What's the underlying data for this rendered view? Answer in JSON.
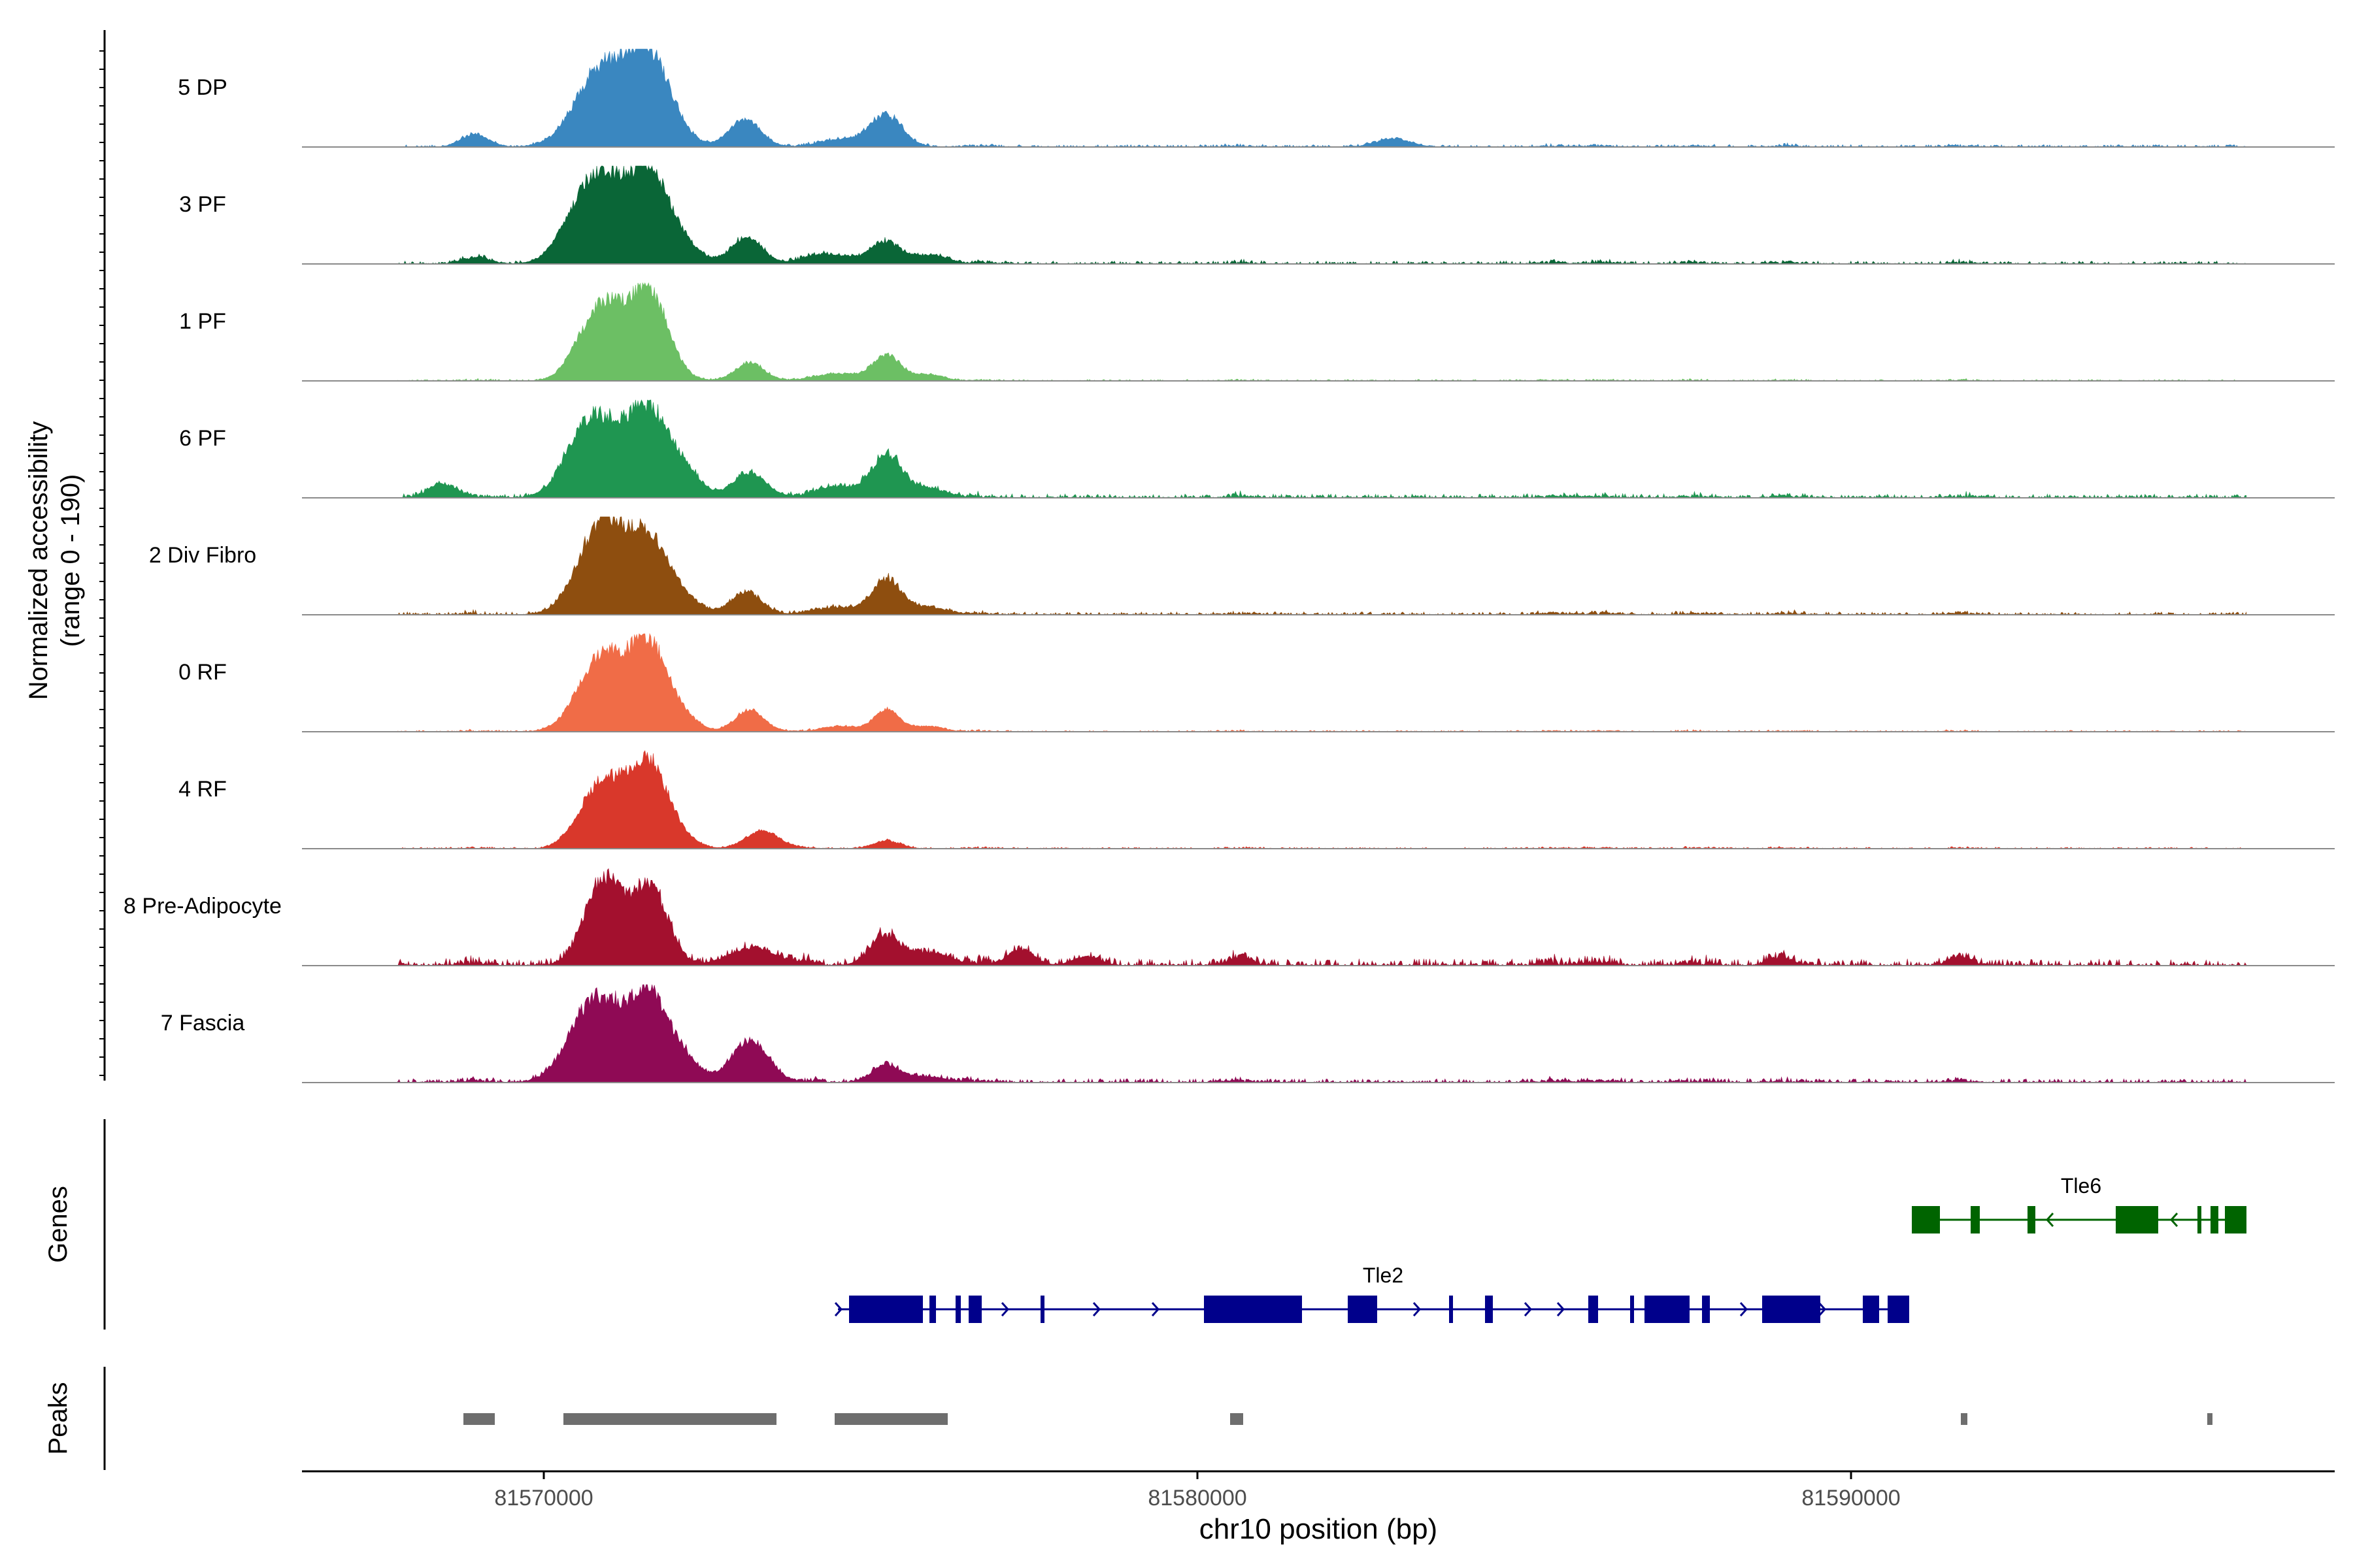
{
  "chart_data": {
    "type": "area",
    "title": "",
    "chromosome": "chr10",
    "xlabel": "chr10 position (bp)",
    "ylabel_line1": "Normalized accessibility",
    "ylabel_line2": "(range 0 - 190)",
    "y_range": [
      0,
      190
    ],
    "xlim": [
      81566300,
      81597400
    ],
    "x_ticks": [
      81570000,
      81580000,
      81590000
    ],
    "x_tick_labels": [
      "81570000",
      "81580000",
      "81590000"
    ],
    "genes_label": "Genes",
    "peaks_label": "Peaks",
    "track_start": 81567750,
    "track_end": 81596050,
    "peak_centers": [
      81568950,
      81571750,
      81574080,
      81575250,
      81576650,
      81580650,
      81585450,
      81586150,
      81587600,
      81589000,
      81591700
    ],
    "series": [
      {
        "name": "5 DP",
        "color": "#3A87C0",
        "peaks": [
          [
            81568950,
            200,
            0.13
          ],
          [
            81570850,
            380,
            0.82
          ],
          [
            81571600,
            350,
            1.0
          ],
          [
            81573070,
            240,
            0.3
          ],
          [
            81575230,
            250,
            0.34
          ],
          [
            81574550,
            300,
            0.08
          ],
          [
            81583000,
            250,
            0.09
          ]
        ],
        "noise": 0.025,
        "seed": 11
      },
      {
        "name": "3 PF",
        "color": "#0A6637",
        "peaks": [
          [
            81568950,
            200,
            0.06
          ],
          [
            81570450,
            300,
            0.22
          ],
          [
            81570850,
            350,
            0.86
          ],
          [
            81571600,
            330,
            1.0
          ],
          [
            81572200,
            250,
            0.12
          ],
          [
            81573100,
            230,
            0.3
          ],
          [
            81574400,
            350,
            0.1
          ],
          [
            81575230,
            220,
            0.24
          ],
          [
            81575900,
            250,
            0.1
          ]
        ],
        "noise": 0.03,
        "seed": 23
      },
      {
        "name": "1 PF",
        "color": "#6CBF64",
        "peaks": [
          [
            81570450,
            200,
            0.12
          ],
          [
            81570900,
            300,
            0.82
          ],
          [
            81571600,
            300,
            1.0
          ],
          [
            81573150,
            220,
            0.2
          ],
          [
            81574500,
            300,
            0.08
          ],
          [
            81575250,
            220,
            0.28
          ],
          [
            81575900,
            200,
            0.07
          ]
        ],
        "noise": 0.015,
        "seed": 37
      },
      {
        "name": "6 PF",
        "color": "#1F9651",
        "peaks": [
          [
            81568450,
            200,
            0.16
          ],
          [
            81570500,
            300,
            0.3
          ],
          [
            81570850,
            340,
            0.72
          ],
          [
            81571600,
            330,
            0.95
          ],
          [
            81572200,
            250,
            0.2
          ],
          [
            81573150,
            250,
            0.28
          ],
          [
            81574500,
            300,
            0.12
          ],
          [
            81575250,
            240,
            0.45
          ],
          [
            81575900,
            250,
            0.1
          ]
        ],
        "noise": 0.04,
        "seed": 53
      },
      {
        "name": "2 Div Fibro",
        "color": "#8E4E0F",
        "peaks": [
          [
            81570450,
            250,
            0.12
          ],
          [
            81570900,
            320,
            0.98
          ],
          [
            81571600,
            330,
            0.82
          ],
          [
            81572200,
            250,
            0.1
          ],
          [
            81573100,
            230,
            0.26
          ],
          [
            81574500,
            300,
            0.08
          ],
          [
            81575250,
            230,
            0.38
          ],
          [
            81575900,
            250,
            0.08
          ]
        ],
        "noise": 0.03,
        "seed": 67
      },
      {
        "name": "0 RF",
        "color": "#F06C47",
        "peaks": [
          [
            81570450,
            250,
            0.12
          ],
          [
            81570900,
            300,
            0.82
          ],
          [
            81571600,
            300,
            1.0
          ],
          [
            81572200,
            200,
            0.1
          ],
          [
            81573150,
            220,
            0.24
          ],
          [
            81574550,
            250,
            0.06
          ],
          [
            81575250,
            200,
            0.24
          ],
          [
            81575900,
            200,
            0.06
          ]
        ],
        "noise": 0.015,
        "seed": 79
      },
      {
        "name": "4 RF",
        "color": "#D9382B",
        "peaks": [
          [
            81570450,
            200,
            0.08
          ],
          [
            81570900,
            300,
            0.72
          ],
          [
            81571600,
            300,
            0.97
          ],
          [
            81572200,
            200,
            0.06
          ],
          [
            81573350,
            250,
            0.2
          ],
          [
            81575250,
            200,
            0.08
          ]
        ],
        "noise": 0.015,
        "seed": 97
      },
      {
        "name": "8 Pre-Adipocyte",
        "color": "#A3102E",
        "peaks": [
          [
            81570900,
            280,
            0.95
          ],
          [
            81571600,
            280,
            0.85
          ],
          [
            81573200,
            350,
            0.2
          ],
          [
            81575230,
            230,
            0.3
          ],
          [
            81575900,
            300,
            0.14
          ],
          [
            81577300,
            200,
            0.18
          ],
          [
            81578300,
            200,
            0.1
          ],
          [
            81580650,
            150,
            0.08
          ],
          [
            81588900,
            150,
            0.08
          ],
          [
            81591650,
            150,
            0.08
          ]
        ],
        "noise": 0.07,
        "seed": 109
      },
      {
        "name": "7 Fascia",
        "color": "#8F0A55",
        "peaks": [
          [
            81570450,
            300,
            0.25
          ],
          [
            81570850,
            320,
            0.8
          ],
          [
            81571600,
            330,
            0.95
          ],
          [
            81572200,
            250,
            0.15
          ],
          [
            81573150,
            280,
            0.46
          ],
          [
            81575250,
            220,
            0.18
          ],
          [
            81575900,
            250,
            0.06
          ]
        ],
        "noise": 0.04,
        "seed": 127
      }
    ],
    "genes": [
      {
        "name": "Tle6",
        "strand": "-",
        "color": "#006400",
        "start": 81590930,
        "end": 81596050,
        "exons": [
          [
            81590930,
            81591360
          ],
          [
            81591830,
            81591970
          ],
          [
            81592700,
            81592820
          ],
          [
            81594050,
            81594700
          ],
          [
            81595300,
            81595360
          ],
          [
            81595500,
            81595620
          ],
          [
            81595720,
            81596050
          ]
        ],
        "arrows": [
          81593000,
          81594900
        ]
      },
      {
        "name": "Tle2",
        "strand": "+",
        "color": "#00008B",
        "start": 81574500,
        "end": 81590890,
        "exons": [
          [
            81574670,
            81575800
          ],
          [
            81575900,
            81576000
          ],
          [
            81576300,
            81576380
          ],
          [
            81576500,
            81576700
          ],
          [
            81577600,
            81577660
          ],
          [
            81580100,
            81581600
          ],
          [
            81582300,
            81582750
          ],
          [
            81583850,
            81583910
          ],
          [
            81584400,
            81584520
          ],
          [
            81585980,
            81586130
          ],
          [
            81586620,
            81586680
          ],
          [
            81586840,
            81587530
          ],
          [
            81587720,
            81587840
          ],
          [
            81588640,
            81589530
          ],
          [
            81590180,
            81590430
          ],
          [
            81590560,
            81590890
          ]
        ],
        "arrows": [
          81574550,
          81577100,
          81578500,
          81579400,
          81583400,
          81585100,
          81585600,
          81588400,
          81589600
        ]
      }
    ],
    "peak_ranges": [
      [
        81568770,
        81569250
      ],
      [
        81570300,
        81573560
      ],
      [
        81574450,
        81576180
      ],
      [
        81580500,
        81580700
      ],
      [
        81591680,
        81591780
      ],
      [
        81595450,
        81595530
      ]
    ]
  }
}
